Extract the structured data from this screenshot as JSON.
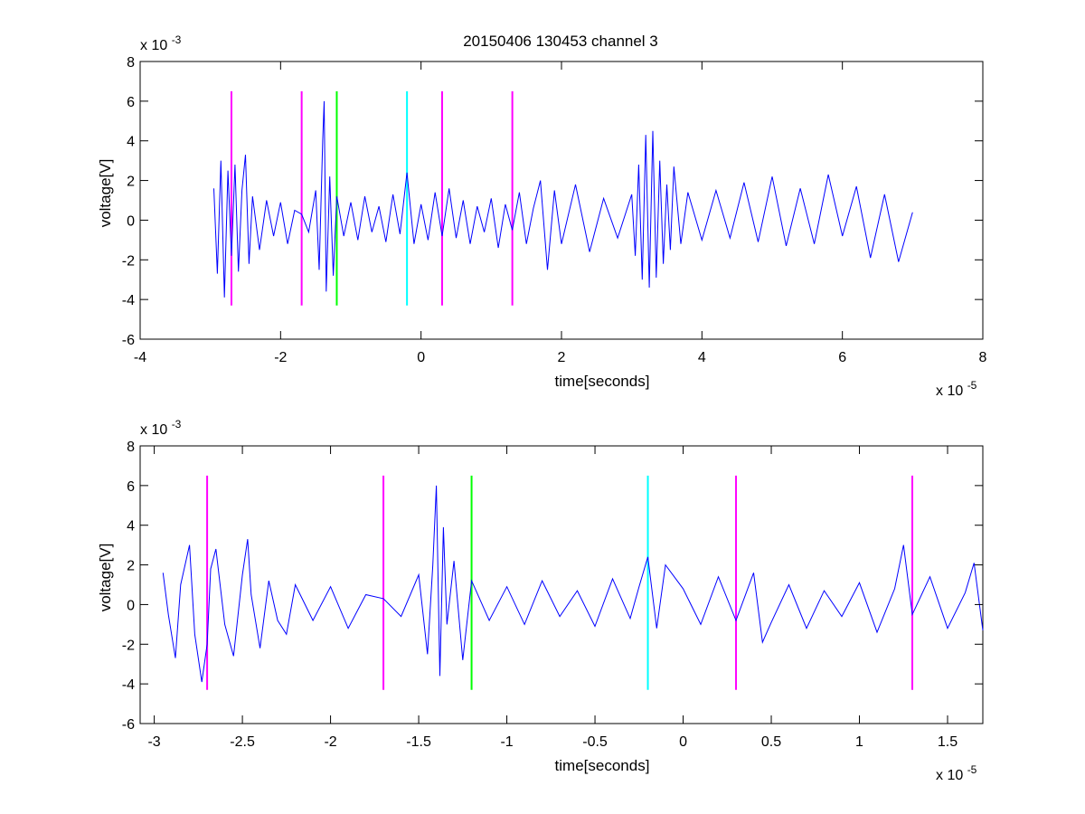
{
  "figure": {
    "title": "20150406 130453 channel 3"
  },
  "colors": {
    "signal": "#0000ff",
    "magenta": "#ff00ff",
    "green": "#00ff00",
    "cyan": "#00ffff",
    "axis": "#000000"
  },
  "chart_data": [
    {
      "type": "line",
      "title": "20150406 130453 channel 3",
      "xlabel": "time[seconds]",
      "ylabel": "voltage[V]",
      "x_exponent_label": "x 10",
      "x_exponent": "-5",
      "y_exponent_label": "x 10",
      "y_exponent": "-3",
      "xlim": [
        -4,
        8
      ],
      "ylim": [
        -6,
        8
      ],
      "x_ticks": [
        -4,
        -2,
        0,
        2,
        4,
        6,
        8
      ],
      "x_tick_labels": [
        "-4",
        "-2",
        "0",
        "2",
        "4",
        "6",
        "8"
      ],
      "y_ticks": [
        -6,
        -4,
        -2,
        0,
        2,
        4,
        6,
        8
      ],
      "y_tick_labels": [
        "-6",
        "-4",
        "-2",
        "0",
        "2",
        "4",
        "6",
        "8"
      ],
      "grid": false,
      "legend": "none",
      "series": [
        {
          "x": [
            -2.95,
            -2.9,
            -2.85,
            -2.8,
            -2.75,
            -2.7,
            -2.65,
            -2.6,
            -2.55,
            -2.5,
            -2.45,
            -2.4,
            -2.3,
            -2.2,
            -2.1,
            -2.0,
            -1.9,
            -1.8,
            -1.7,
            -1.6,
            -1.5,
            -1.45,
            -1.4,
            -1.38,
            -1.35,
            -1.3,
            -1.25,
            -1.2,
            -1.1,
            -1.0,
            -0.9,
            -0.8,
            -0.7,
            -0.6,
            -0.5,
            -0.4,
            -0.3,
            -0.2,
            -0.1,
            0.0,
            0.1,
            0.2,
            0.3,
            0.4,
            0.5,
            0.6,
            0.7,
            0.8,
            0.9,
            1.0,
            1.1,
            1.2,
            1.3,
            1.4,
            1.5,
            1.6,
            1.7,
            1.8,
            1.9,
            2.0,
            2.2,
            2.4,
            2.6,
            2.8,
            3.0,
            3.05,
            3.1,
            3.15,
            3.2,
            3.25,
            3.3,
            3.35,
            3.4,
            3.45,
            3.5,
            3.55,
            3.6,
            3.7,
            3.8,
            4.0,
            4.2,
            4.4,
            4.6,
            4.8,
            5.0,
            5.2,
            5.4,
            5.6,
            5.8,
            6.0,
            6.2,
            6.4,
            6.6,
            6.8,
            7.0
          ],
          "y": [
            1.6,
            -2.7,
            3.0,
            -3.9,
            2.5,
            -1.8,
            2.8,
            -2.6,
            1.5,
            3.3,
            -2.2,
            1.2,
            -1.5,
            1.0,
            -0.8,
            0.9,
            -1.2,
            0.5,
            0.3,
            -0.6,
            1.5,
            -2.5,
            4.0,
            6.0,
            -3.6,
            2.2,
            -2.8,
            1.2,
            -0.8,
            0.9,
            -1.0,
            1.2,
            -0.6,
            0.7,
            -1.1,
            1.3,
            -0.7,
            2.4,
            -1.2,
            0.8,
            -1.0,
            1.4,
            -0.8,
            1.6,
            -0.9,
            1.0,
            -1.2,
            0.7,
            -0.6,
            1.1,
            -1.4,
            0.8,
            -0.5,
            1.4,
            -1.2,
            0.6,
            2.0,
            -2.5,
            1.5,
            -1.2,
            1.8,
            -1.6,
            1.1,
            -0.9,
            1.3,
            -1.8,
            2.8,
            -3.0,
            4.3,
            -3.4,
            4.5,
            -2.9,
            3.0,
            -2.2,
            1.8,
            -1.5,
            2.7,
            -1.2,
            1.4,
            -1.0,
            1.5,
            -0.9,
            1.9,
            -1.1,
            2.2,
            -1.3,
            1.6,
            -1.2,
            2.3,
            -0.8,
            1.7,
            -1.9,
            1.3,
            -2.1,
            0.4
          ]
        }
      ],
      "markers": [
        {
          "x": -2.7,
          "color": "magenta",
          "y_range": [
            -4.3,
            6.5
          ]
        },
        {
          "x": -1.7,
          "color": "magenta",
          "y_range": [
            -4.3,
            6.5
          ]
        },
        {
          "x": -1.2,
          "color": "green",
          "y_range": [
            -4.3,
            6.5
          ]
        },
        {
          "x": -0.2,
          "color": "cyan",
          "y_range": [
            -4.3,
            6.5
          ]
        },
        {
          "x": 0.3,
          "color": "magenta",
          "y_range": [
            -4.3,
            6.5
          ]
        },
        {
          "x": 1.3,
          "color": "magenta",
          "y_range": [
            -4.3,
            6.5
          ]
        }
      ]
    },
    {
      "type": "line",
      "title": "",
      "xlabel": "time[seconds]",
      "ylabel": "voltage[V]",
      "x_exponent_label": "x 10",
      "x_exponent": "-5",
      "y_exponent_label": "x 10",
      "y_exponent": "-3",
      "xlim": [
        -3.08,
        1.7
      ],
      "ylim": [
        -6,
        8
      ],
      "x_ticks": [
        -3,
        -2.5,
        -2,
        -1.5,
        -1,
        -0.5,
        0,
        0.5,
        1,
        1.5
      ],
      "x_tick_labels": [
        "-3",
        "-2.5",
        "-2",
        "-1.5",
        "-1",
        "-0.5",
        "0",
        "0.5",
        "1",
        "1.5"
      ],
      "y_ticks": [
        -6,
        -4,
        -2,
        0,
        2,
        4,
        6,
        8
      ],
      "y_tick_labels": [
        "-6",
        "-4",
        "-2",
        "0",
        "2",
        "4",
        "6",
        "8"
      ],
      "grid": false,
      "legend": "none",
      "series": [
        {
          "x": [
            -2.95,
            -2.92,
            -2.88,
            -2.85,
            -2.8,
            -2.77,
            -2.73,
            -2.7,
            -2.68,
            -2.65,
            -2.6,
            -2.55,
            -2.5,
            -2.47,
            -2.45,
            -2.4,
            -2.35,
            -2.3,
            -2.25,
            -2.2,
            -2.1,
            -2.0,
            -1.9,
            -1.8,
            -1.7,
            -1.6,
            -1.5,
            -1.45,
            -1.42,
            -1.4,
            -1.38,
            -1.36,
            -1.34,
            -1.3,
            -1.25,
            -1.2,
            -1.1,
            -1.0,
            -0.9,
            -0.8,
            -0.7,
            -0.6,
            -0.5,
            -0.4,
            -0.3,
            -0.25,
            -0.2,
            -0.15,
            -0.1,
            0.0,
            0.1,
            0.2,
            0.3,
            0.4,
            0.45,
            0.5,
            0.6,
            0.7,
            0.8,
            0.9,
            1.0,
            1.1,
            1.2,
            1.25,
            1.3,
            1.4,
            1.5,
            1.6,
            1.65,
            1.7
          ],
          "y": [
            1.6,
            -0.5,
            -2.7,
            1.0,
            3.0,
            -1.5,
            -3.9,
            -2.0,
            1.8,
            2.8,
            -1.0,
            -2.6,
            1.5,
            3.3,
            0.5,
            -2.2,
            1.2,
            -0.8,
            -1.5,
            1.0,
            -0.8,
            0.9,
            -1.2,
            0.5,
            0.3,
            -0.6,
            1.5,
            -2.5,
            2.0,
            6.0,
            -3.6,
            3.9,
            -1.0,
            2.2,
            -2.8,
            1.2,
            -0.8,
            0.9,
            -1.0,
            1.2,
            -0.6,
            0.7,
            -1.1,
            1.3,
            -0.7,
            0.9,
            2.4,
            -1.2,
            2.0,
            0.8,
            -1.0,
            1.4,
            -0.8,
            1.6,
            -1.9,
            -0.9,
            1.0,
            -1.2,
            0.7,
            -0.6,
            1.1,
            -1.4,
            0.8,
            3.0,
            -0.5,
            1.4,
            -1.2,
            0.6,
            2.1,
            -1.3
          ]
        }
      ],
      "markers": [
        {
          "x": -2.7,
          "color": "magenta",
          "y_range": [
            -4.3,
            6.5
          ]
        },
        {
          "x": -1.7,
          "color": "magenta",
          "y_range": [
            -4.3,
            6.5
          ]
        },
        {
          "x": -1.2,
          "color": "green",
          "y_range": [
            -4.3,
            6.5
          ]
        },
        {
          "x": -0.2,
          "color": "cyan",
          "y_range": [
            -4.3,
            6.5
          ]
        },
        {
          "x": 0.3,
          "color": "magenta",
          "y_range": [
            -4.3,
            6.5
          ]
        },
        {
          "x": 1.3,
          "color": "magenta",
          "y_range": [
            -4.3,
            6.5
          ]
        }
      ]
    }
  ]
}
